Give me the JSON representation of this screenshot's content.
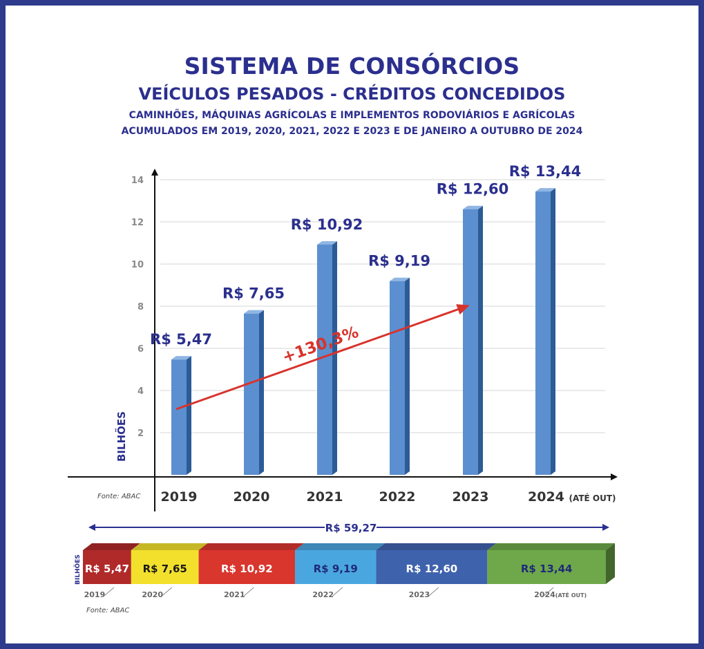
{
  "header": {
    "title": "SISTEMA DE CONSÓRCIOS",
    "subtitle": "VEÍCULOS PESADOS - CRÉDITOS CONCEDIDOS",
    "line1": "CAMINHÕES, MÁQUINAS AGRÍCOLAS E IMPLEMENTOS RODOVIÁRIOS E AGRÍCOLAS",
    "line2": "ACUMULADOS EM 2019, 2020, 2021, 2022 E 2023 E DE JANEIRO A OUTUBRO DE 2024"
  },
  "chart_data": [
    {
      "type": "bar",
      "categories": [
        "2019",
        "2020",
        "2021",
        "2022",
        "2023",
        "2024"
      ],
      "category_suffix_last": "(ATÉ OUT)",
      "values": [
        5.47,
        7.65,
        10.92,
        9.19,
        12.6,
        13.44
      ],
      "value_labels": [
        "R$ 5,47",
        "R$ 7,65",
        "R$ 10,92",
        "R$ 9,19",
        "R$ 12,60",
        "R$ 13,44"
      ],
      "ylabel": "BILHÕES",
      "ylim": [
        0,
        14
      ],
      "yticks": [
        2,
        4,
        6,
        8,
        10,
        12,
        14
      ],
      "grid": true,
      "bar_color": "#5b8fd0",
      "trend_label": "+130,3%",
      "trend_color": "#d8332b",
      "source": "Fonte: ABAC"
    },
    {
      "type": "bar",
      "orientation": "stacked-horizontal",
      "total_label": "R$ 59,27",
      "ylabel": "BILHÕES",
      "segments": [
        {
          "year": "2019",
          "label": "R$ 5,47",
          "value": 5.47,
          "color": "#b02a2a",
          "text_color": "#ffffff"
        },
        {
          "year": "2020",
          "label": "R$ 7,65",
          "value": 7.65,
          "color": "#f2e02c",
          "text_color": "#1a1a1a"
        },
        {
          "year": "2021",
          "label": "R$ 10,92",
          "value": 10.92,
          "color": "#d9362e",
          "text_color": "#ffffff"
        },
        {
          "year": "2022",
          "label": "R$ 9,19",
          "value": 9.19,
          "color": "#4aa6df",
          "text_color": "#1f2a78"
        },
        {
          "year": "2023",
          "label": "R$ 12,60",
          "value": 12.6,
          "color": "#3f62ad",
          "text_color": "#ffffff"
        },
        {
          "year": "2024",
          "label": "R$ 13,44",
          "value": 13.44,
          "color": "#6ea84a",
          "text_color": "#1f2a78"
        }
      ],
      "last_year_suffix": "(ATÉ OUT)",
      "source": "Fonte: ABAC"
    }
  ]
}
